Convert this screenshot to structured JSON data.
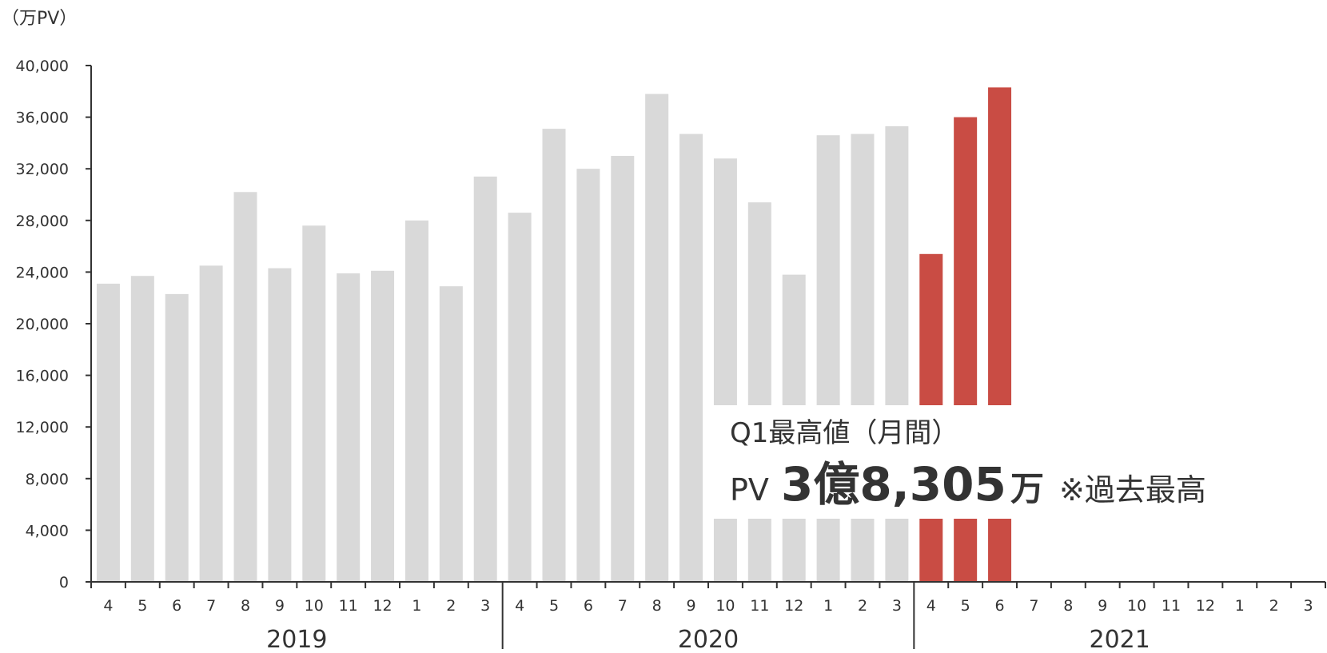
{
  "chart_data": {
    "type": "bar",
    "unit_label": "（万PV）",
    "categories": [
      "4",
      "5",
      "6",
      "7",
      "8",
      "9",
      "10",
      "11",
      "12",
      "1",
      "2",
      "3",
      "4",
      "5",
      "6",
      "7",
      "8",
      "9",
      "10",
      "11",
      "12",
      "1",
      "2",
      "3",
      "4",
      "5",
      "6",
      "7",
      "8",
      "9",
      "10",
      "11",
      "12",
      "1",
      "2",
      "3"
    ],
    "years": [
      "2019",
      "2020",
      "2021"
    ],
    "values": [
      23100,
      23700,
      22300,
      24500,
      30200,
      24300,
      27600,
      23900,
      24100,
      28000,
      22900,
      31400,
      28600,
      35100,
      32000,
      33000,
      37800,
      34700,
      32800,
      29400,
      23800,
      34600,
      34700,
      35300,
      25400,
      36000,
      38305,
      null,
      null,
      null,
      null,
      null,
      null,
      null,
      null,
      null
    ],
    "highlight_indices": [
      24,
      25,
      26
    ],
    "ylim": [
      0,
      40000
    ],
    "yticks": [
      "0",
      "4,000",
      "8,000",
      "12,000",
      "16,000",
      "20,000",
      "24,000",
      "28,000",
      "32,000",
      "36,000",
      "40,000"
    ],
    "colors": {
      "normal": "#d9d9d9",
      "highlight": "#c94c44",
      "axis": "#333333"
    },
    "annotation": {
      "title": "Q1最高値（月間）",
      "pv_label": "PV",
      "value": "3億8,305",
      "unit": "万",
      "note": "※過去最高"
    }
  }
}
